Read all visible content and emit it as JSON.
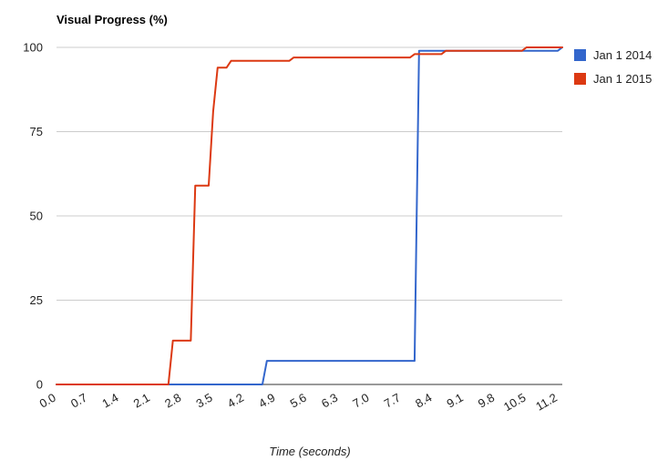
{
  "chart_data": {
    "type": "line",
    "title": "Visual Progress (%)",
    "xlabel": "Time (seconds)",
    "ylabel": "",
    "xlim": [
      0,
      11.3
    ],
    "ylim": [
      0,
      100
    ],
    "x_ticks": [
      "0.0",
      "0.7",
      "1.4",
      "2.1",
      "2.8",
      "3.5",
      "4.2",
      "4.9",
      "5.6",
      "6.3",
      "7.0",
      "7.7",
      "8.4",
      "9.1",
      "9.8",
      "10.5",
      "11.2"
    ],
    "y_ticks": [
      "0",
      "25",
      "50",
      "75",
      "100"
    ],
    "grid": true,
    "legend_position": "right",
    "series": [
      {
        "name": "Jan 1 2014",
        "color": "#3366cc",
        "points": [
          [
            0.0,
            0
          ],
          [
            4.6,
            0
          ],
          [
            4.7,
            7
          ],
          [
            8.0,
            7
          ],
          [
            8.1,
            99
          ],
          [
            11.2,
            99
          ],
          [
            11.3,
            100
          ]
        ]
      },
      {
        "name": "Jan 1 2015",
        "color": "#dc3912",
        "points": [
          [
            0.0,
            0
          ],
          [
            2.5,
            0
          ],
          [
            2.6,
            13
          ],
          [
            3.0,
            13
          ],
          [
            3.1,
            59
          ],
          [
            3.4,
            59
          ],
          [
            3.5,
            81
          ],
          [
            3.6,
            94
          ],
          [
            3.8,
            94
          ],
          [
            3.9,
            96
          ],
          [
            5.2,
            96
          ],
          [
            5.3,
            97
          ],
          [
            7.9,
            97
          ],
          [
            8.0,
            98
          ],
          [
            8.6,
            98
          ],
          [
            8.7,
            99
          ],
          [
            10.4,
            99
          ],
          [
            10.5,
            100
          ],
          [
            11.3,
            100
          ]
        ]
      }
    ]
  }
}
